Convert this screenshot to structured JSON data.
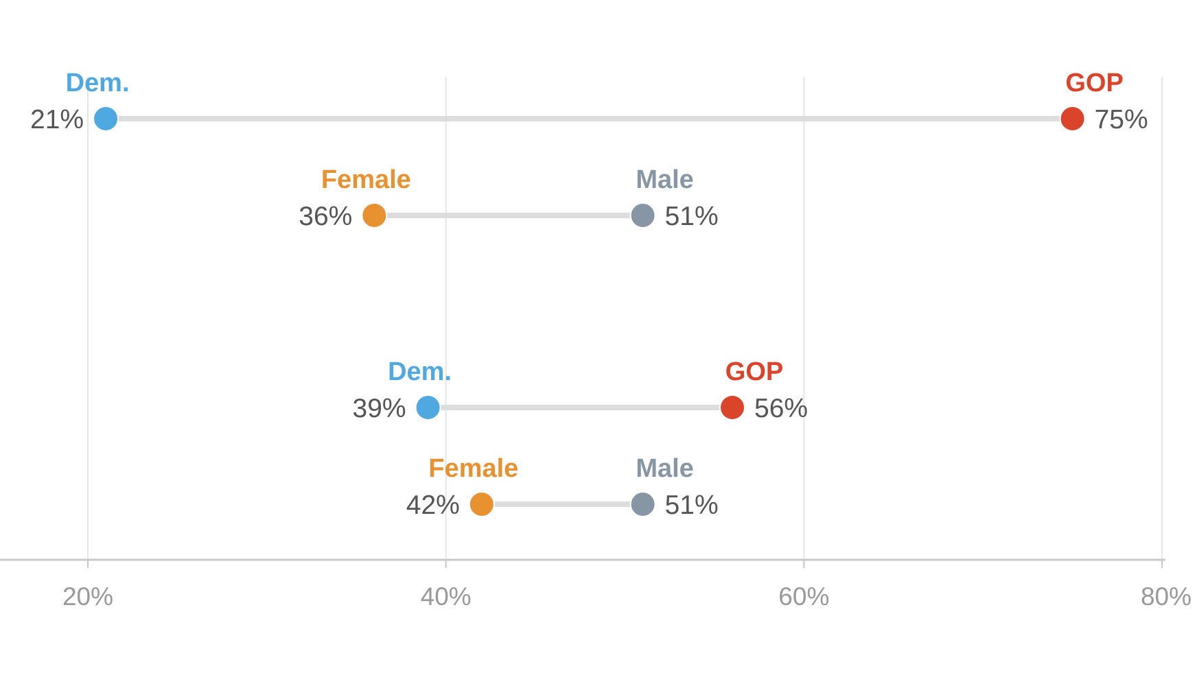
{
  "chart_data": {
    "type": "dumbbell",
    "xlim": [
      20,
      80
    ],
    "xticks": [
      20,
      40,
      60,
      80
    ],
    "tick_suffix": "%",
    "grid": true,
    "colors": {
      "dem": "#4fa8e0",
      "gop": "#d9442a",
      "female": "#e89131",
      "male": "#8796a5",
      "connector": "#dddddd",
      "gridline": "#e6e6e6",
      "axis": "#c8c8c8",
      "tick_label": "#999999",
      "value_label": "#555555"
    },
    "rows": [
      {
        "left": {
          "label": "Dem.",
          "value": 21,
          "color_key": "dem"
        },
        "right": {
          "label": "GOP",
          "value": 75,
          "color_key": "gop"
        }
      },
      {
        "left": {
          "label": "Female",
          "value": 36,
          "color_key": "female"
        },
        "right": {
          "label": "Male",
          "value": 51,
          "color_key": "male"
        }
      },
      {
        "left": {
          "label": "Dem.",
          "value": 39,
          "color_key": "dem"
        },
        "right": {
          "label": "GOP",
          "value": 56,
          "color_key": "gop"
        }
      },
      {
        "left": {
          "label": "Female",
          "value": 42,
          "color_key": "female"
        },
        "right": {
          "label": "Male",
          "value": 51,
          "color_key": "male"
        }
      }
    ]
  }
}
